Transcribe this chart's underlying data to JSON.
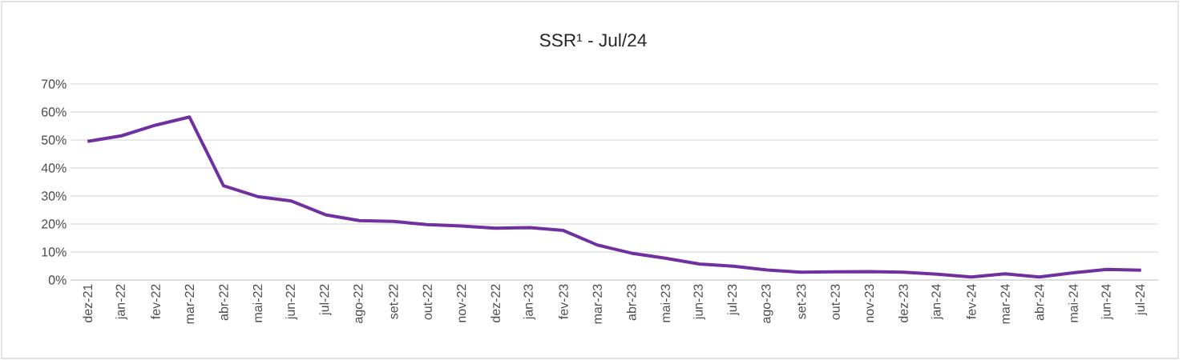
{
  "chart_data": {
    "type": "line",
    "title": "SSR¹ - Jul/24",
    "categories": [
      "dez-21",
      "jan-22",
      "fev-22",
      "mar-22",
      "abr-22",
      "mai-22",
      "jun-22",
      "jul-22",
      "ago-22",
      "set-22",
      "out-22",
      "nov-22",
      "dez-22",
      "jan-23",
      "fev-23",
      "mar-23",
      "abr-23",
      "mai-23",
      "jun-23",
      "jul-23",
      "ago-23",
      "set-23",
      "out-23",
      "nov-23",
      "dez-23",
      "jan-24",
      "fev-24",
      "mar-24",
      "abr-24",
      "mai-24",
      "jun-24",
      "jul-24"
    ],
    "series": [
      {
        "color": "#7030a0",
        "values": [
          49.5,
          51.5,
          55.3,
          58.2,
          33.7,
          29.8,
          28.2,
          23.3,
          21.2,
          20.9,
          19.8,
          19.3,
          18.5,
          18.7,
          17.7,
          12.5,
          9.6,
          7.8,
          5.7,
          4.9,
          3.6,
          2.8,
          2.9,
          3.0,
          2.8,
          2.1,
          1.1,
          2.2,
          1.1,
          2.6,
          3.8,
          3.5
        ]
      }
    ],
    "ylim": [
      0,
      70
    ],
    "yticks": [
      {
        "value": 0,
        "label": "0%"
      },
      {
        "value": 10,
        "label": "10%"
      },
      {
        "value": 20,
        "label": "20%"
      },
      {
        "value": 30,
        "label": "30%"
      },
      {
        "value": 40,
        "label": "40%"
      },
      {
        "value": 50,
        "label": "50%"
      },
      {
        "value": 60,
        "label": "60%"
      },
      {
        "value": 70,
        "label": "70%"
      }
    ],
    "grid": "y",
    "marker": "none",
    "line_style": "solid",
    "legend": false
  }
}
